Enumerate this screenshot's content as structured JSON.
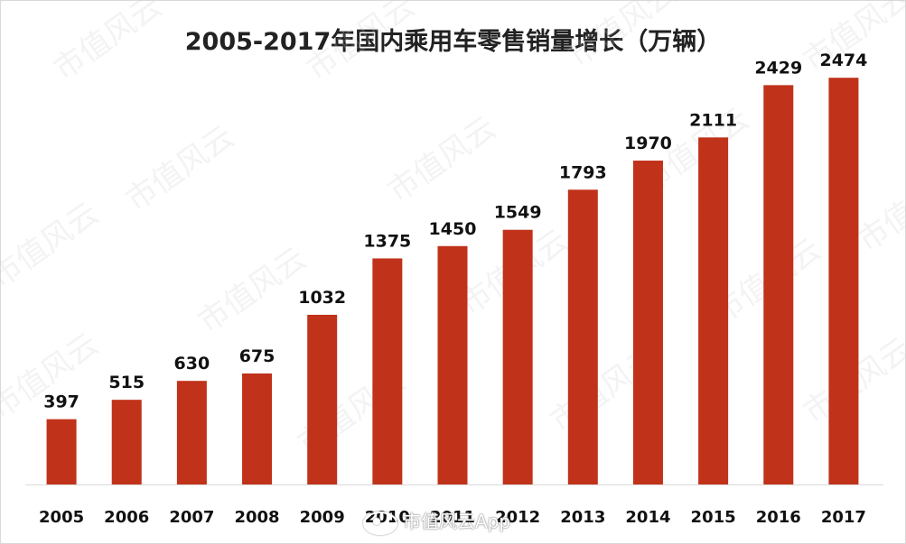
{
  "chart_data": {
    "type": "bar",
    "title": "2005-2017年国内乘用车零售销量增长（万辆）",
    "categories": [
      "2005",
      "2006",
      "2007",
      "2008",
      "2009",
      "2010",
      "2011",
      "2012",
      "2013",
      "2014",
      "2015",
      "2016",
      "2017"
    ],
    "values": [
      397,
      515,
      630,
      675,
      1032,
      1375,
      1450,
      1549,
      1793,
      1970,
      2111,
      2429,
      2474
    ],
    "bar_color": "#c0321a",
    "ylim": [
      0,
      2700
    ],
    "grid": false,
    "legend": "none",
    "data_labels": true,
    "watermark_text": "市值风云",
    "corner_watermark": "市值风云App"
  }
}
